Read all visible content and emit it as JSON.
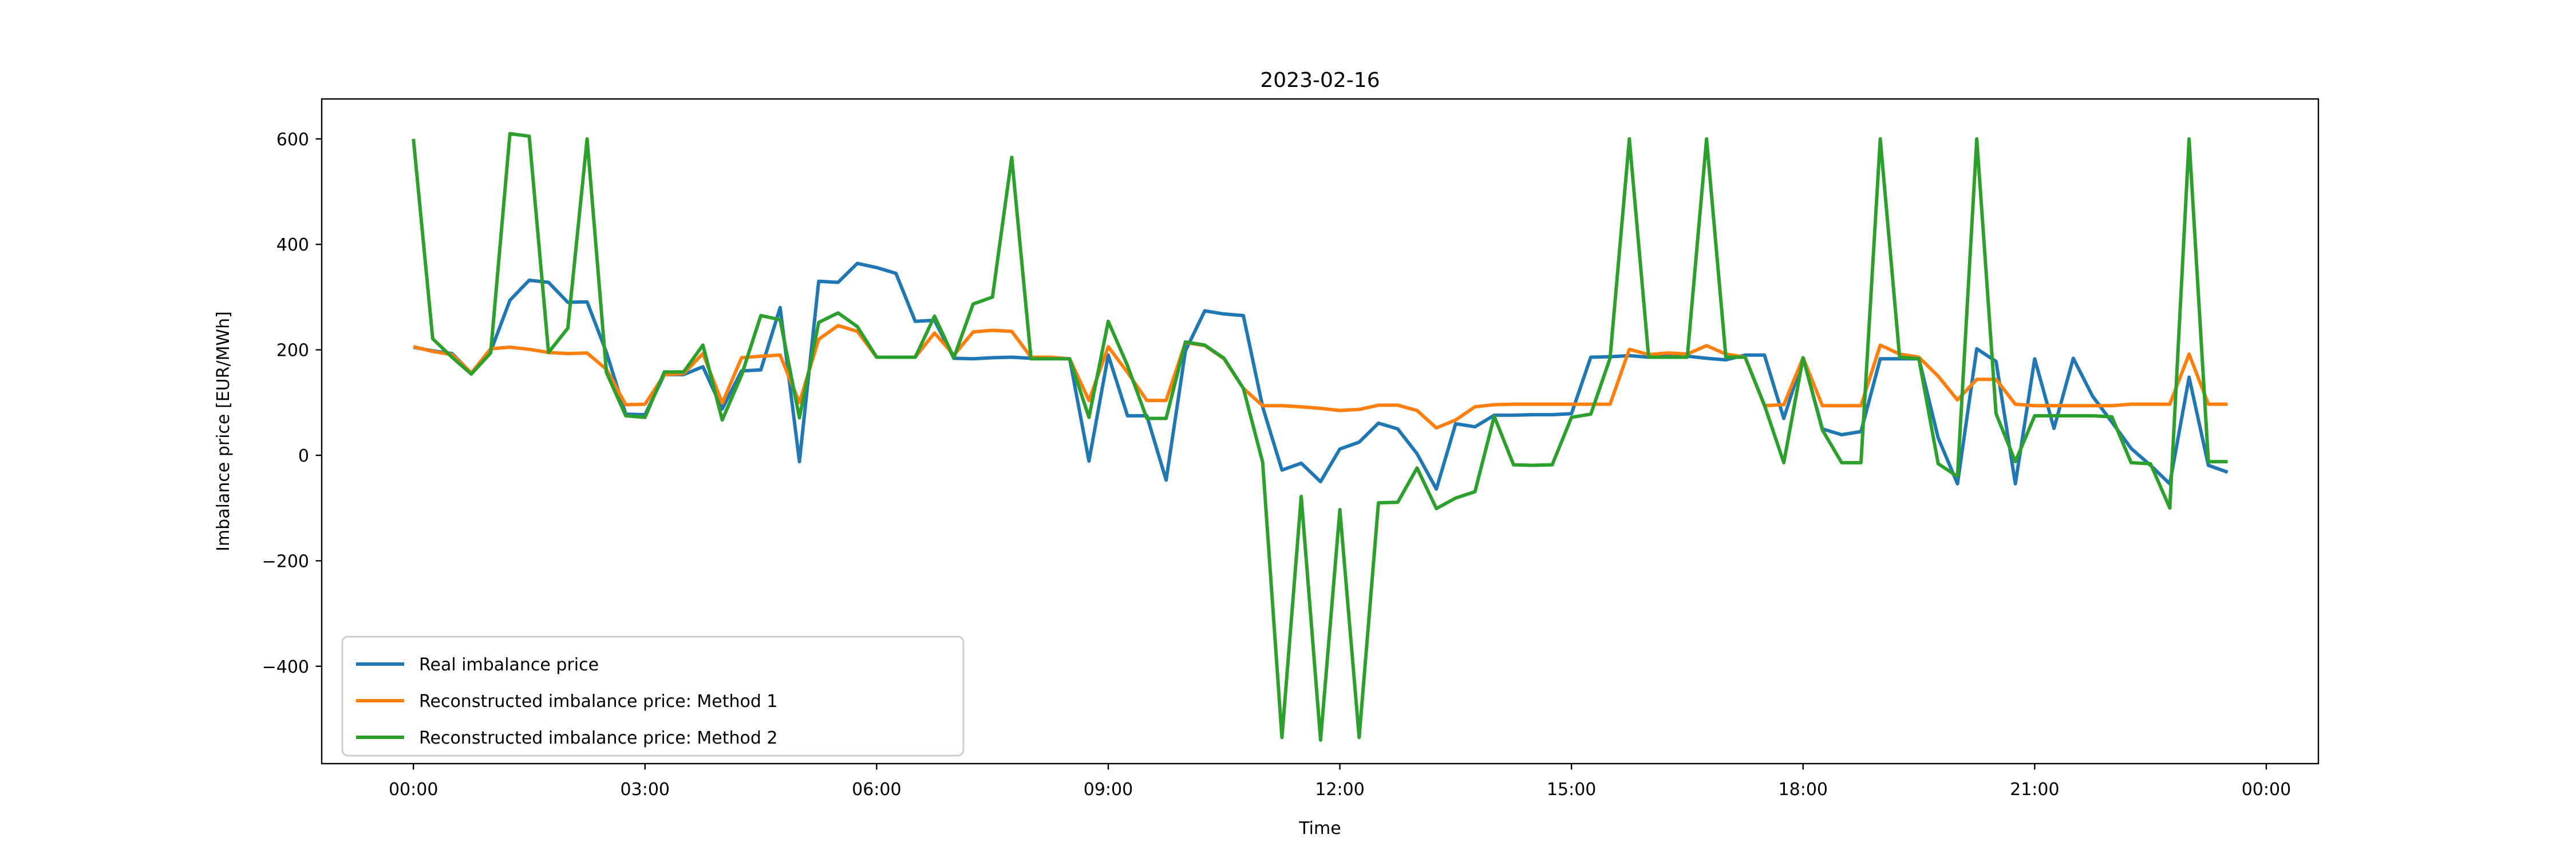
{
  "title": "2023-02-16",
  "xlabel": "Time",
  "ylabel": "Imbalance price [EUR/MWh]",
  "legend": {
    "items": [
      {
        "label": "Real imbalance price",
        "color": "#1f77b4"
      },
      {
        "label": "Reconstructed imbalance price: Method 1",
        "color": "#ff7f0e"
      },
      {
        "label": "Reconstructed imbalance price: Method 2",
        "color": "#2ca02c"
      }
    ]
  },
  "chart_data": {
    "type": "line",
    "title": "2023-02-16",
    "xlabel": "Time",
    "ylabel": "Imbalance price [EUR/MWh]",
    "x_tick_labels": [
      "00:00",
      "03:00",
      "06:00",
      "09:00",
      "12:00",
      "15:00",
      "18:00",
      "21:00",
      "00:00"
    ],
    "x_tick_hours": [
      0,
      3,
      6,
      9,
      12,
      15,
      18,
      21,
      24
    ],
    "y_ticks": [
      600,
      400,
      200,
      0,
      -200,
      -400
    ],
    "ylim": [
      -584,
      675
    ],
    "grid": false,
    "legend_position": "lower left",
    "time_step_minutes": 15,
    "times": [
      "00:00",
      "00:15",
      "00:30",
      "00:45",
      "01:00",
      "01:15",
      "01:30",
      "01:45",
      "02:00",
      "02:15",
      "02:30",
      "02:45",
      "03:00",
      "03:15",
      "03:30",
      "03:45",
      "04:00",
      "04:15",
      "04:30",
      "04:45",
      "05:00",
      "05:15",
      "05:30",
      "05:45",
      "06:00",
      "06:15",
      "06:30",
      "06:45",
      "07:00",
      "07:15",
      "07:30",
      "07:45",
      "08:00",
      "08:15",
      "08:30",
      "08:45",
      "09:00",
      "09:15",
      "09:30",
      "09:45",
      "10:00",
      "10:15",
      "10:30",
      "10:45",
      "11:00",
      "11:15",
      "11:30",
      "11:45",
      "12:00",
      "12:15",
      "12:30",
      "12:45",
      "13:00",
      "13:15",
      "13:30",
      "13:45",
      "14:00",
      "14:15",
      "14:30",
      "14:45",
      "15:00",
      "15:15",
      "15:30",
      "15:45",
      "16:00",
      "16:15",
      "16:30",
      "16:45",
      "17:00",
      "17:15",
      "17:30",
      "17:45",
      "18:00",
      "18:15",
      "18:30",
      "18:45",
      "19:00",
      "19:15",
      "19:30",
      "19:45",
      "20:00",
      "20:15",
      "20:30",
      "20:45",
      "21:00",
      "21:15",
      "21:30",
      "21:45",
      "22:00",
      "22:15",
      "22:30",
      "22:45",
      "23:00",
      "23:15",
      "23:30"
    ],
    "series": [
      {
        "name": "Real imbalance price",
        "color": "#1f77b4",
        "values": [
          205,
          198,
          193,
          156,
          197,
          294,
          332,
          328,
          290,
          291,
          195,
          78,
          77,
          153,
          153,
          168,
          88,
          160,
          162,
          280,
          -12,
          330,
          328,
          364,
          356,
          345,
          254,
          256,
          184,
          183,
          185,
          186,
          184,
          184,
          183,
          -11,
          190,
          75,
          75,
          -47,
          198,
          274,
          268,
          265,
          92,
          -28,
          -15,
          -50,
          12,
          25,
          61,
          50,
          3,
          -64,
          60,
          54,
          76,
          76,
          77,
          77,
          79,
          186,
          187,
          189,
          186,
          188,
          188,
          184,
          181,
          190,
          190,
          70,
          185,
          50,
          39,
          45,
          183,
          183,
          183,
          33,
          -54,
          202,
          178,
          -54,
          183,
          51,
          184,
          112,
          63,
          13,
          -19,
          -54,
          148,
          -19,
          -32
        ]
      },
      {
        "name": "Reconstructed imbalance price: Method 1",
        "color": "#ff7f0e",
        "values": [
          206,
          197,
          191,
          156,
          202,
          205,
          201,
          195,
          193,
          194,
          163,
          96,
          97,
          153,
          155,
          193,
          99,
          185,
          188,
          190,
          100,
          220,
          246,
          235,
          186,
          186,
          186,
          232,
          190,
          234,
          237,
          235,
          186,
          186,
          183,
          104,
          206,
          157,
          104,
          104,
          214,
          208,
          183,
          127,
          94,
          94,
          92,
          89,
          85,
          87,
          95,
          95,
          85,
          52,
          67,
          92,
          96,
          97,
          97,
          97,
          97,
          97,
          97,
          201,
          191,
          194,
          192,
          208,
          192,
          186,
          94,
          96,
          185,
          94,
          94,
          94,
          209,
          192,
          186,
          150,
          105,
          144,
          144,
          97,
          94,
          94,
          94,
          94,
          94,
          97,
          97,
          97,
          192,
          97,
          97
        ]
      },
      {
        "name": "Reconstructed imbalance price: Method 2",
        "color": "#2ca02c",
        "values": [
          600,
          221,
          186,
          154,
          194,
          610,
          605,
          195,
          241,
          600,
          157,
          75,
          72,
          158,
          158,
          209,
          67,
          152,
          265,
          257,
          71,
          252,
          270,
          244,
          186,
          186,
          186,
          264,
          185,
          287,
          300,
          565,
          183,
          183,
          183,
          72,
          254,
          170,
          70,
          70,
          215,
          209,
          184,
          127,
          -13,
          -535,
          -78,
          -540,
          -103,
          -535,
          -90,
          -89,
          -24,
          -101,
          -81,
          -69,
          74,
          -18,
          -19,
          -18,
          72,
          78,
          184,
          600,
          186,
          186,
          186,
          600,
          186,
          186,
          95,
          -14,
          185,
          48,
          -14,
          -14,
          600,
          186,
          183,
          -16,
          -40,
          600,
          79,
          -12,
          75,
          75,
          75,
          75,
          73,
          -14,
          -16,
          -100,
          600,
          -12,
          -12
        ]
      }
    ]
  }
}
